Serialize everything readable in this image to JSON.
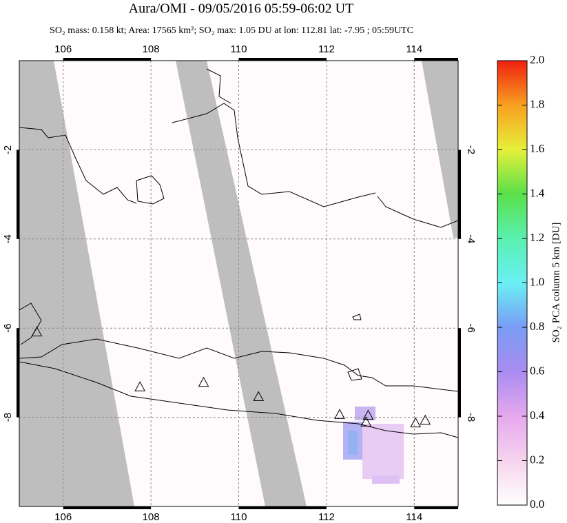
{
  "chart_data": {
    "type": "map",
    "title": "Aura/OMI - 09/05/2016 05:59-06:02 UT",
    "subtitle": "SO₂ mass: 0.158 kt; Area: 17565 km²; SO₂ max: 1.05 DU at lon: 112.81 lat: -7.95 ; 05:59UTC",
    "xlim": [
      105,
      115
    ],
    "xticks": [
      106,
      108,
      110,
      112,
      114
    ],
    "ylim": [
      -10,
      0
    ],
    "yticks": [
      -2,
      -4,
      -6,
      -8
    ],
    "grid": true,
    "volcanoes": {
      "lon": [
        105.4,
        107.75,
        109.2,
        110.45,
        112.3,
        112.95,
        112.9,
        114.03,
        114.25
      ],
      "lat": [
        -6.1,
        -7.33,
        -7.23,
        -7.55,
        -7.95,
        -7.97,
        -8.12,
        -8.14,
        -8.08
      ]
    },
    "colorbar": {
      "label": "SO₂ PCA column 5 km [DU]",
      "lim": [
        0,
        2
      ],
      "ticks": [
        {
          "value": 0,
          "label": "0.0"
        },
        {
          "value": 0.2,
          "label": "0.2"
        },
        {
          "value": 0.4,
          "label": "0.4"
        },
        {
          "value": 0.6,
          "label": "0.6"
        },
        {
          "value": 0.8,
          "label": "0.8"
        },
        {
          "value": 1,
          "label": "1.0"
        },
        {
          "value": 1.2,
          "label": "1.2"
        },
        {
          "value": 1.4,
          "label": "1.4"
        },
        {
          "value": 1.6,
          "label": "1.6"
        },
        {
          "value": 1.8,
          "label": "1.8"
        },
        {
          "value": 2,
          "label": "2.0"
        }
      ]
    }
  }
}
